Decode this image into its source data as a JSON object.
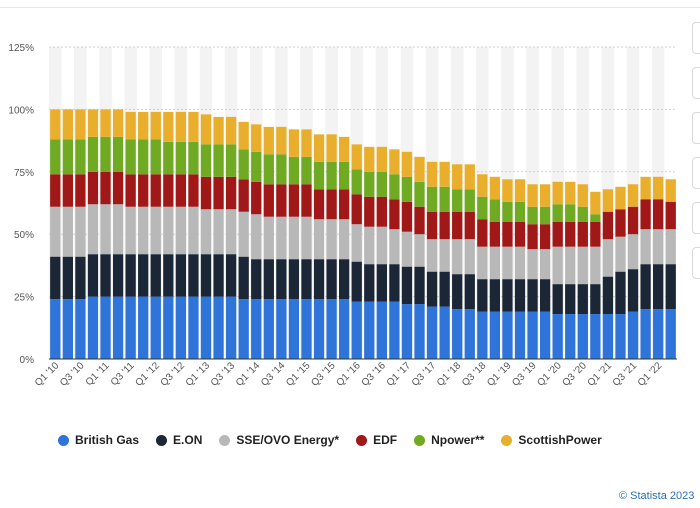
{
  "chart_data": {
    "type": "bar",
    "stacked": true,
    "categories": [
      "Q1 '10",
      "Q2 '10",
      "Q3 '10",
      "Q4 '10",
      "Q1 '11",
      "Q2 '11",
      "Q3 '11",
      "Q4 '11",
      "Q1 '12",
      "Q2 '12",
      "Q3 '12",
      "Q4 '12",
      "Q1 '13",
      "Q2 '13",
      "Q3 '13",
      "Q4 '13",
      "Q1 '14",
      "Q2 '14",
      "Q3 '14",
      "Q4 '14",
      "Q1 '15",
      "Q2 '15",
      "Q3 '15",
      "Q4 '15",
      "Q1 '16",
      "Q2 '16",
      "Q3 '16",
      "Q4 '16",
      "Q1 '17",
      "Q2 '17",
      "Q3 '17",
      "Q4 '17",
      "Q1 '18",
      "Q2 '18",
      "Q3 '18",
      "Q4 '18",
      "Q1 '19",
      "Q2 '19",
      "Q3 '19",
      "Q4 '19",
      "Q1 '20",
      "Q2 '20",
      "Q3 '20",
      "Q4 '20",
      "Q1 '21",
      "Q2 '21",
      "Q3 '21",
      "Q4 '21",
      "Q1 '22",
      "Q2 '22"
    ],
    "xtick_labels": [
      "Q1 '10",
      "Q3 '10",
      "Q1 '11",
      "Q3 '11",
      "Q1 '12",
      "Q3 '12",
      "Q1 '13",
      "Q3 '13",
      "Q1 '14",
      "Q3 '14",
      "Q1 '15",
      "Q3 '15",
      "Q1 '16",
      "Q3 '16",
      "Q1 '17",
      "Q3 '17",
      "Q1 '18",
      "Q3 '18",
      "Q1 '19",
      "Q3 '19",
      "Q1 '20",
      "Q3 '20",
      "Q1 '21",
      "Q3 '21",
      "Q1 '22"
    ],
    "yticks": [
      0,
      25,
      50,
      75,
      100,
      125
    ],
    "ytick_labels": [
      "0%",
      "25%",
      "50%",
      "75%",
      "100%",
      "125%"
    ],
    "ylim": [
      0,
      125
    ],
    "grid": true,
    "legend_position": "bottom",
    "series": [
      {
        "name": "British Gas",
        "color": "#2f74d8",
        "values": [
          24,
          24,
          24,
          25,
          25,
          25,
          25,
          25,
          25,
          25,
          25,
          25,
          25,
          25,
          25,
          24,
          24,
          24,
          24,
          24,
          24,
          24,
          24,
          24,
          23,
          23,
          23,
          23,
          22,
          22,
          21,
          21,
          20,
          20,
          19,
          19,
          19,
          19,
          19,
          19,
          18,
          18,
          18,
          18,
          18,
          18,
          19,
          20,
          20,
          20
        ]
      },
      {
        "name": "E.ON",
        "color": "#1b2736",
        "values": [
          17,
          17,
          17,
          17,
          17,
          17,
          17,
          17,
          17,
          17,
          17,
          17,
          17,
          17,
          17,
          17,
          16,
          16,
          16,
          16,
          16,
          16,
          16,
          16,
          16,
          15,
          15,
          15,
          15,
          15,
          14,
          14,
          14,
          14,
          13,
          13,
          13,
          13,
          13,
          13,
          12,
          12,
          12,
          12,
          15,
          17,
          17,
          18,
          18,
          18
        ]
      },
      {
        "name": "SSE/OVO Energy*",
        "color": "#b8b8b8",
        "values": [
          20,
          20,
          20,
          20,
          20,
          20,
          19,
          19,
          19,
          19,
          19,
          19,
          18,
          18,
          18,
          18,
          18,
          17,
          17,
          17,
          17,
          16,
          16,
          16,
          15,
          15,
          15,
          14,
          14,
          13,
          13,
          13,
          14,
          14,
          13,
          13,
          13,
          13,
          12,
          12,
          15,
          15,
          15,
          15,
          15,
          14,
          14,
          14,
          14,
          14
        ]
      },
      {
        "name": "EDF",
        "color": "#a01818",
        "values": [
          13,
          13,
          13,
          13,
          13,
          13,
          13,
          13,
          13,
          13,
          13,
          13,
          13,
          13,
          13,
          13,
          13,
          13,
          13,
          13,
          13,
          12,
          12,
          12,
          12,
          12,
          12,
          12,
          12,
          11,
          11,
          11,
          11,
          11,
          11,
          10,
          10,
          10,
          10,
          10,
          10,
          10,
          10,
          10,
          11,
          11,
          11,
          12,
          12,
          11
        ]
      },
      {
        "name": "Npower**",
        "color": "#6faa22",
        "values": [
          14,
          14,
          14,
          14,
          14,
          14,
          14,
          14,
          14,
          13,
          13,
          13,
          13,
          13,
          13,
          12,
          12,
          12,
          12,
          11,
          11,
          11,
          11,
          11,
          10,
          10,
          10,
          10,
          10,
          10,
          10,
          10,
          9,
          9,
          9,
          9,
          8,
          8,
          7,
          7,
          7,
          7,
          6,
          3,
          0,
          0,
          0,
          0,
          0,
          0
        ]
      },
      {
        "name": "ScottishPower",
        "color": "#e9ae2b",
        "values": [
          12,
          12,
          12,
          11,
          11,
          11,
          11,
          11,
          11,
          12,
          12,
          12,
          12,
          11,
          11,
          11,
          11,
          11,
          11,
          11,
          11,
          11,
          11,
          10,
          10,
          10,
          10,
          10,
          10,
          10,
          10,
          10,
          10,
          10,
          9,
          9,
          9,
          9,
          9,
          9,
          9,
          9,
          9,
          9,
          9,
          9,
          9,
          9,
          9,
          9
        ]
      }
    ]
  },
  "credit": "© Statista 2023"
}
